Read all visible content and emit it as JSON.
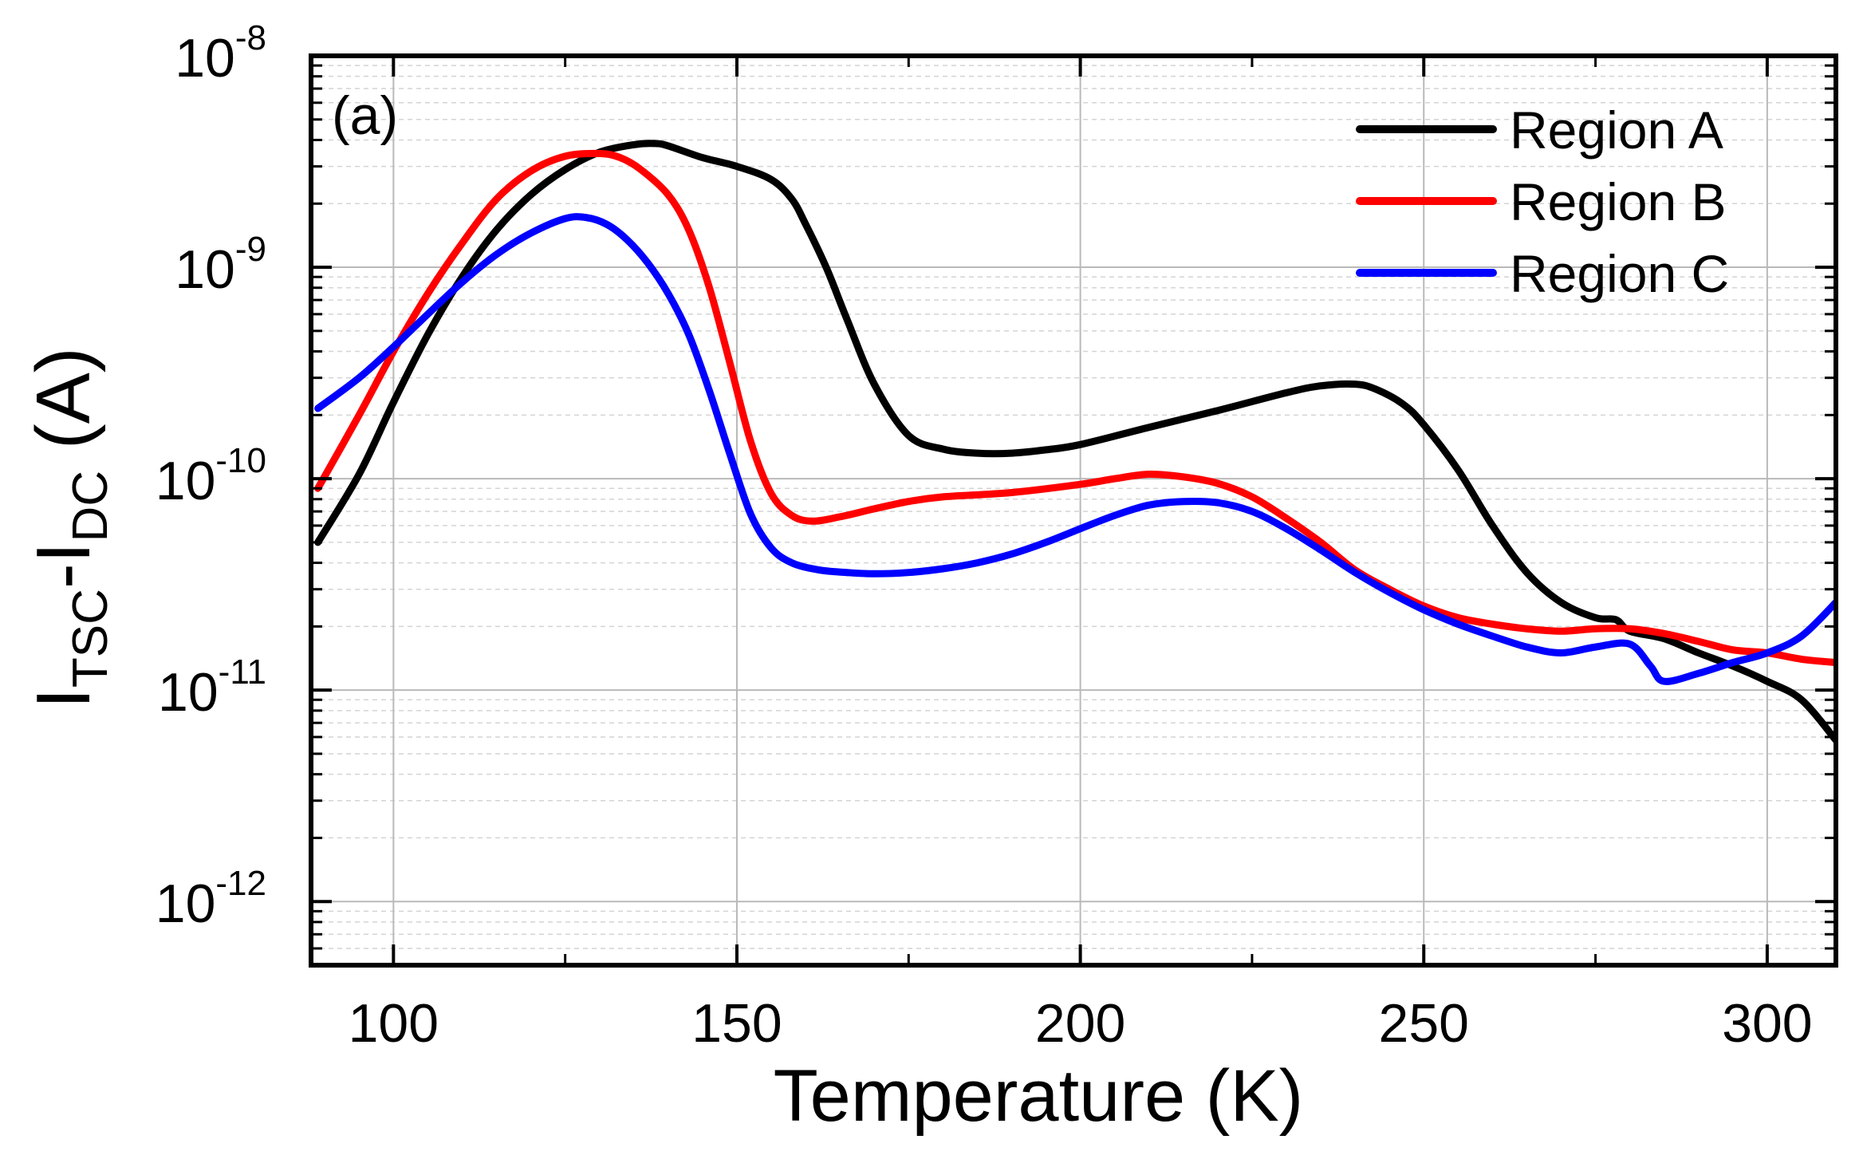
{
  "chart_data": {
    "type": "line",
    "panel_label": "(a)",
    "xlabel": "Temperature (K)",
    "ylabel": {
      "base1": "I",
      "sub1": "TSC",
      "mid": "-I",
      "sub2": "DC",
      "tail": " (A)"
    },
    "xlim": [
      88,
      310
    ],
    "ylim": [
      5e-13,
      1e-08
    ],
    "yscale": "log",
    "grid": true,
    "legend_position": "top-right",
    "x_ticks": [
      {
        "value": 100,
        "label": "100"
      },
      {
        "value": 150,
        "label": "150"
      },
      {
        "value": 200,
        "label": "200"
      },
      {
        "value": 250,
        "label": "250"
      },
      {
        "value": 300,
        "label": "300"
      }
    ],
    "y_ticks": [
      {
        "exp": -8,
        "label_base": "10",
        "label_exp": "-8"
      },
      {
        "exp": -9,
        "label_base": "10",
        "label_exp": "-9"
      },
      {
        "exp": -10,
        "label_base": "10",
        "label_exp": "-10"
      },
      {
        "exp": -11,
        "label_base": "10",
        "label_exp": "-11"
      },
      {
        "exp": -12,
        "label_base": "10",
        "label_exp": "-12"
      }
    ],
    "series": [
      {
        "name": "Region A",
        "color": "#000000",
        "x": [
          89,
          95,
          100,
          105,
          110,
          115,
          120,
          125,
          130,
          135,
          138,
          140,
          145,
          150,
          155,
          158,
          160,
          163,
          166,
          170,
          175,
          180,
          185,
          190,
          195,
          200,
          210,
          220,
          230,
          235,
          240,
          243,
          247,
          250,
          255,
          260,
          265,
          270,
          275,
          278,
          280,
          285,
          290,
          295,
          300,
          305,
          310
        ],
        "y": [
          5e-11,
          1.05e-10,
          2.3e-10,
          4.8e-10,
          9e-10,
          1.5e-09,
          2.2e-09,
          2.9e-09,
          3.5e-09,
          3.8e-09,
          3.85e-09,
          3.75e-09,
          3.3e-09,
          3e-09,
          2.6e-09,
          2.1e-09,
          1.6e-09,
          1e-09,
          5.7e-10,
          2.8e-10,
          1.6e-10,
          1.38e-10,
          1.32e-10,
          1.32e-10,
          1.37e-10,
          1.45e-10,
          1.75e-10,
          2.1e-10,
          2.55e-10,
          2.75e-10,
          2.8e-10,
          2.65e-10,
          2.25e-10,
          1.8e-10,
          1.1e-10,
          6e-11,
          3.6e-11,
          2.6e-11,
          2.2e-11,
          2.15e-11,
          1.9e-11,
          1.75e-11,
          1.5e-11,
          1.3e-11,
          1.1e-11,
          9e-12,
          5.8e-12
        ]
      },
      {
        "name": "Region B",
        "color": "#ff0000",
        "x": [
          89,
          95,
          100,
          105,
          110,
          115,
          120,
          125,
          130,
          133,
          136,
          140,
          143,
          146,
          149,
          152,
          155,
          158,
          161,
          165,
          170,
          175,
          180,
          190,
          200,
          205,
          210,
          215,
          220,
          225,
          230,
          235,
          240,
          245,
          250,
          255,
          260,
          265,
          270,
          275,
          280,
          285,
          290,
          295,
          300,
          305,
          310
        ],
        "y": [
          9e-11,
          2e-10,
          4e-10,
          7.5e-10,
          1.3e-09,
          2.1e-09,
          2.85e-09,
          3.35e-09,
          3.45e-09,
          3.3e-09,
          2.9e-09,
          2.2e-09,
          1.5e-09,
          8e-10,
          3.5e-10,
          1.5e-10,
          8.5e-11,
          6.7e-11,
          6.3e-11,
          6.6e-11,
          7.2e-11,
          7.8e-11,
          8.2e-11,
          8.6e-11,
          9.4e-11,
          1e-10,
          1.05e-10,
          1.02e-10,
          9.5e-11,
          8.2e-11,
          6.5e-11,
          5e-11,
          3.7e-11,
          3e-11,
          2.5e-11,
          2.2e-11,
          2.05e-11,
          1.95e-11,
          1.9e-11,
          1.95e-11,
          1.95e-11,
          1.85e-11,
          1.7e-11,
          1.55e-11,
          1.5e-11,
          1.4e-11,
          1.35e-11
        ]
      },
      {
        "name": "Region C",
        "color": "#0000ff",
        "x": [
          89,
          95,
          100,
          105,
          110,
          115,
          120,
          125,
          128,
          131,
          134,
          137,
          140,
          143,
          146,
          149,
          152,
          155,
          158,
          162,
          166,
          170,
          175,
          180,
          185,
          190,
          195,
          200,
          205,
          210,
          215,
          220,
          225,
          230,
          235,
          240,
          245,
          250,
          255,
          260,
          265,
          270,
          275,
          280,
          283,
          285,
          290,
          295,
          300,
          305,
          310
        ],
        "y": [
          2.15e-10,
          3e-10,
          4.2e-10,
          6e-10,
          8.5e-10,
          1.15e-09,
          1.45e-09,
          1.7e-09,
          1.72e-09,
          1.6e-09,
          1.35e-09,
          1.05e-09,
          7.5e-10,
          4.8e-10,
          2.6e-10,
          1.3e-10,
          6.8e-11,
          4.7e-11,
          4e-11,
          3.7e-11,
          3.6e-11,
          3.55e-11,
          3.6e-11,
          3.75e-11,
          4e-11,
          4.4e-11,
          5e-11,
          5.8e-11,
          6.7e-11,
          7.5e-11,
          7.8e-11,
          7.7e-11,
          7e-11,
          5.8e-11,
          4.6e-11,
          3.6e-11,
          2.9e-11,
          2.4e-11,
          2.05e-11,
          1.8e-11,
          1.6e-11,
          1.5e-11,
          1.6e-11,
          1.65e-11,
          1.3e-11,
          1.1e-11,
          1.2e-11,
          1.35e-11,
          1.5e-11,
          1.8e-11,
          2.6e-11
        ]
      }
    ]
  }
}
